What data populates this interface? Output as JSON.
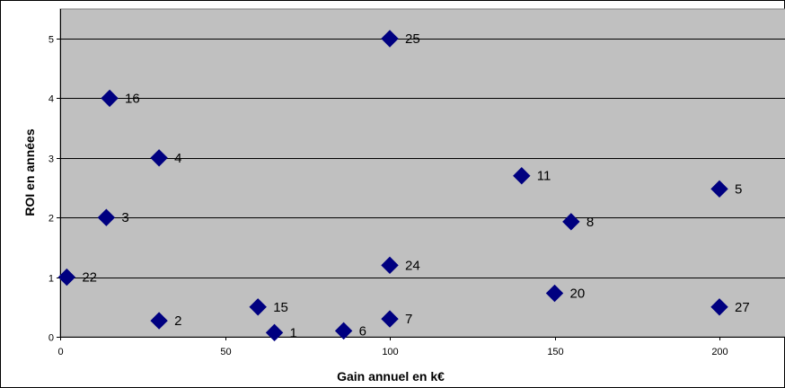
{
  "chart_data": {
    "type": "scatter",
    "title": "",
    "xlabel": "Gain annuel en k€",
    "ylabel": "ROI en années",
    "xlim": [
      0,
      220
    ],
    "ylim": [
      0,
      5.5
    ],
    "x_ticks": [
      "0",
      "50",
      "100",
      "150",
      "200"
    ],
    "y_ticks": [
      "0",
      "1",
      "2",
      "3",
      "4",
      "5"
    ],
    "grid": "horizontal",
    "legend": "none",
    "marker": "diamond",
    "colors": {
      "marker": "#000080",
      "plot_background": "#c0c0c0",
      "gridline": "#000000"
    },
    "points": [
      {
        "x": 2,
        "y": 1,
        "label": "22"
      },
      {
        "x": 14,
        "y": 2,
        "label": "3"
      },
      {
        "x": 15,
        "y": 4,
        "label": "16"
      },
      {
        "x": 30,
        "y": 3,
        "label": "4"
      },
      {
        "x": 30,
        "y": 0.27,
        "label": "2"
      },
      {
        "x": 60,
        "y": 0.5,
        "label": "15"
      },
      {
        "x": 65,
        "y": 0.07,
        "label": "1"
      },
      {
        "x": 86,
        "y": 0.1,
        "label": "6"
      },
      {
        "x": 100,
        "y": 5,
        "label": "25"
      },
      {
        "x": 100,
        "y": 1.2,
        "label": "24"
      },
      {
        "x": 100,
        "y": 0.3,
        "label": "7"
      },
      {
        "x": 140,
        "y": 2.7,
        "label": "11"
      },
      {
        "x": 155,
        "y": 1.93,
        "label": "8"
      },
      {
        "x": 150,
        "y": 0.73,
        "label": "20"
      },
      {
        "x": 200,
        "y": 2.48,
        "label": "5"
      },
      {
        "x": 200,
        "y": 0.5,
        "label": "27"
      }
    ]
  }
}
